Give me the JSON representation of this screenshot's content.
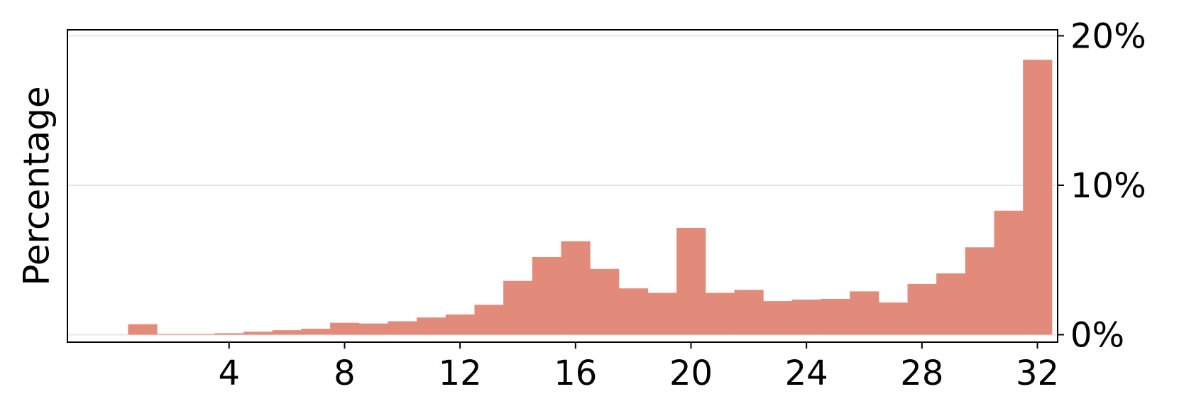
{
  "chart_data": {
    "type": "bar",
    "categories": [
      "1",
      "2",
      "3",
      "4",
      "5",
      "6",
      "7",
      "8",
      "9",
      "10",
      "11",
      "12",
      "13",
      "14",
      "15",
      "16",
      "17",
      "18",
      "19",
      "20",
      "21",
      "22",
      "23",
      "24",
      "25",
      "26",
      "27",
      "28",
      "29",
      "30",
      "31",
      "32"
    ],
    "values": [
      0.7,
      0.05,
      0.05,
      0.1,
      0.2,
      0.3,
      0.4,
      0.8,
      0.75,
      0.9,
      1.15,
      1.35,
      2.0,
      3.6,
      5.2,
      6.25,
      4.4,
      3.1,
      2.8,
      7.15,
      2.8,
      3.0,
      2.25,
      2.35,
      2.4,
      2.9,
      2.15,
      3.4,
      4.1,
      5.85,
      8.3,
      18.4
    ],
    "xlim": [
      -1.6,
      32.7
    ],
    "ylim": [
      -0.5,
      20.4
    ],
    "x_ticks": [
      4,
      8,
      12,
      16,
      20,
      24,
      28,
      32
    ],
    "x_tick_labels": [
      "4",
      "8",
      "12",
      "16",
      "20",
      "24",
      "28",
      "32"
    ],
    "y_ticks": [
      0,
      10,
      20
    ],
    "y_tick_labels": [
      "0%",
      "10%",
      "20%"
    ],
    "y_axis_side": "right",
    "ylabel": "Percentage",
    "xlabel": "",
    "grid": "horizontal",
    "bar_color": "#e38b7b",
    "grid_color": "#e6e6e6"
  }
}
